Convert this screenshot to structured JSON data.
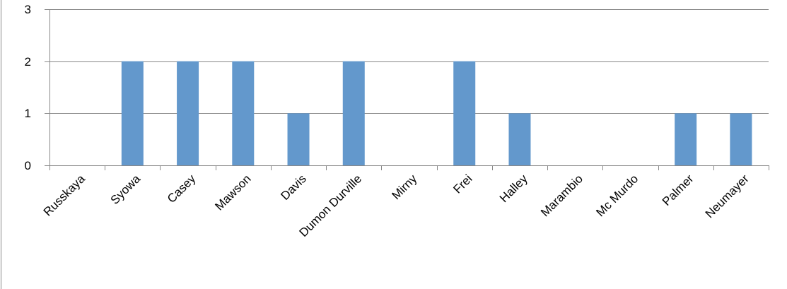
{
  "chart_data": {
    "type": "bar",
    "categories": [
      "Russkaya",
      "Syowa",
      "Casey",
      "Mawson",
      "Davis",
      "Dumon Durville",
      "Mirny",
      "Frei",
      "Halley",
      "Marambio",
      "Mc Murdo",
      "Palmer",
      "Neumayer"
    ],
    "values": [
      0,
      2,
      2,
      2,
      1,
      2,
      0,
      2,
      1,
      0,
      0,
      1,
      1
    ],
    "ylim": [
      0,
      3
    ],
    "yticks": [
      "0",
      "1",
      "2",
      "3"
    ],
    "grid": true,
    "legend": "none",
    "bar_color": "#6398cc",
    "grid_color": "#888888",
    "axis_color": "#888888"
  }
}
